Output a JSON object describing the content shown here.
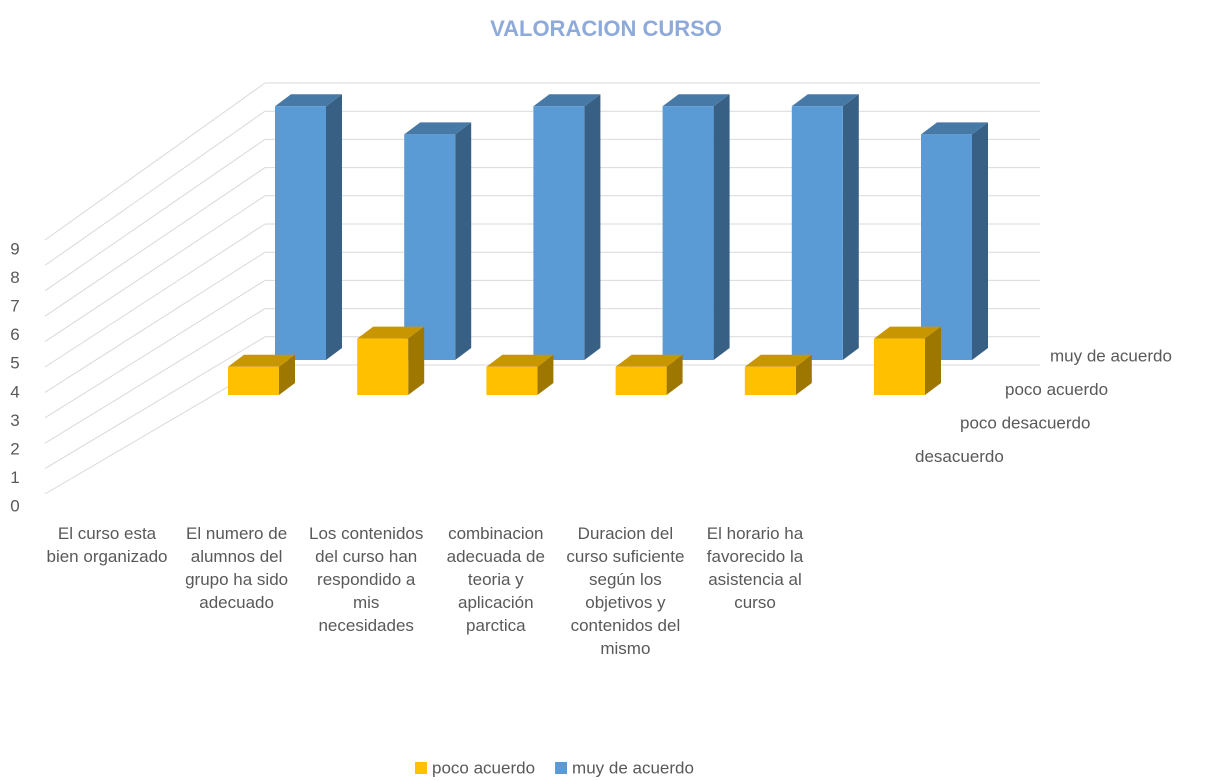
{
  "chart_data": {
    "type": "bar3d",
    "title": "VALORACION CURSO",
    "categories": [
      "El curso esta bien organizado",
      "El numero de alumnos del grupo ha sido adecuado",
      "Los contenidos del curso han respondido a mis necesidades",
      "combinacion adecuada de teoria y aplicación parctica",
      "Duracion del curso suficiente según los objetivos y contenidos del mismo",
      "El horario ha favorecido la asistencia al curso"
    ],
    "depth_categories": [
      "desacuerdo",
      "poco desacuerdo",
      "poco acuerdo",
      "muy de acuerdo"
    ],
    "series": [
      {
        "name": "poco acuerdo",
        "color": "#ffc000",
        "values": [
          1,
          2,
          1,
          1,
          1,
          2
        ]
      },
      {
        "name": "muy de acuerdo",
        "color": "#5b9bd5",
        "values": [
          9,
          8,
          9,
          9,
          9,
          8
        ]
      }
    ],
    "ylim": [
      0,
      10
    ],
    "yticks": [
      0,
      1,
      2,
      3,
      4,
      5,
      6,
      7,
      8,
      9
    ],
    "grid": true,
    "legend": "bottom"
  }
}
